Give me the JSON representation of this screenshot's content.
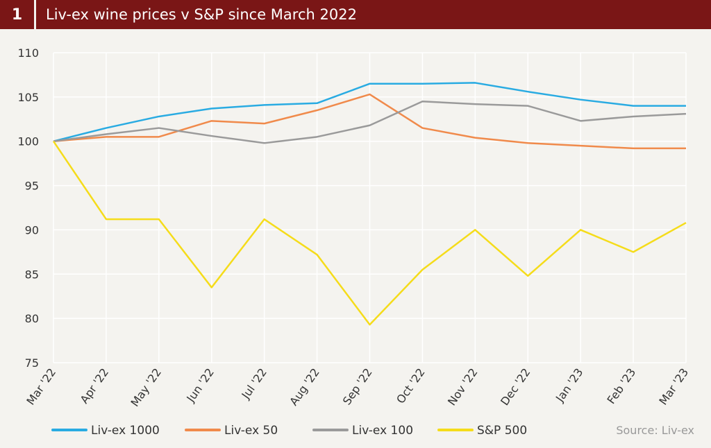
{
  "header": {
    "number": "1",
    "title": "Liv-ex wine prices v S&P since March 2022"
  },
  "source": "Source: Liv-ex",
  "chart_data": {
    "type": "line",
    "title": "Liv-ex wine prices v S&P since March 2022",
    "xlabel": "",
    "ylabel": "",
    "categories": [
      "Mar '22",
      "Apr '22",
      "May '22",
      "Jun '22",
      "Jul '22",
      "Aug '22",
      "Sep '22",
      "Oct '22",
      "Nov '22",
      "Dec '22",
      "Jan '23",
      "Feb '23",
      "Mar '23"
    ],
    "ylim": [
      75,
      110
    ],
    "yticks": [
      75,
      80,
      85,
      90,
      95,
      100,
      105,
      110
    ],
    "grid": true,
    "legend": "bottom",
    "series": [
      {
        "name": "Liv-ex 1000",
        "color": "#29abe2",
        "values": [
          100,
          101.5,
          102.8,
          103.7,
          104.1,
          104.3,
          106.5,
          106.5,
          106.6,
          105.6,
          104.7,
          104.0,
          104.0
        ]
      },
      {
        "name": "Liv-ex 50",
        "color": "#f08a4b",
        "values": [
          100,
          100.5,
          100.5,
          102.3,
          102.0,
          103.5,
          105.3,
          101.5,
          100.4,
          99.8,
          99.5,
          99.2,
          99.2
        ]
      },
      {
        "name": "Liv-ex 100",
        "color": "#9a9a9a",
        "values": [
          100,
          100.8,
          101.5,
          100.6,
          99.8,
          100.5,
          101.8,
          104.5,
          104.2,
          104.0,
          102.3,
          102.8,
          103.1
        ]
      },
      {
        "name": "S&P 500",
        "color": "#f5dc1a",
        "values": [
          100,
          91.2,
          91.2,
          83.5,
          91.2,
          87.2,
          79.3,
          85.5,
          90.0,
          84.8,
          90.0,
          87.5,
          90.8
        ]
      }
    ]
  }
}
